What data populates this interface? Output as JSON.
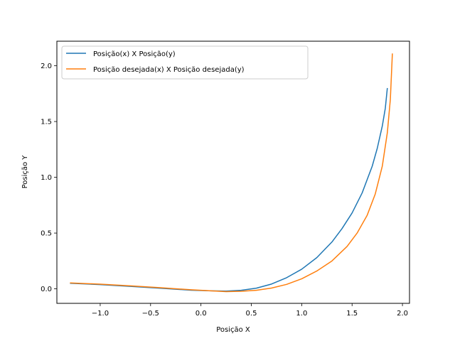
{
  "chart_data": {
    "type": "line",
    "title": "",
    "xlabel": "Posição X",
    "ylabel": "Posição Y",
    "xlim": [
      -1.43,
      2.07
    ],
    "ylim": [
      -0.13,
      2.22
    ],
    "xticks": [
      -1.0,
      -0.5,
      0.0,
      0.5,
      1.0,
      1.5,
      2.0
    ],
    "xtick_labels": [
      "−1.0",
      "−0.5",
      "0.0",
      "0.5",
      "1.0",
      "1.5",
      "2.0"
    ],
    "yticks": [
      0.0,
      0.5,
      1.0,
      1.5,
      2.0
    ],
    "ytick_labels": [
      "0.0",
      "0.5",
      "1.0",
      "1.5",
      "2.0"
    ],
    "grid": false,
    "legend_position": "upper-left",
    "series": [
      {
        "name": "Posição(x) X Posição(y)",
        "color": "#1f77b4",
        "x": [
          -1.3,
          -1.0,
          -0.7,
          -0.4,
          -0.1,
          0.1,
          0.25,
          0.4,
          0.55,
          0.7,
          0.85,
          1.0,
          1.15,
          1.3,
          1.4,
          1.5,
          1.6,
          1.7,
          1.75,
          1.8,
          1.83,
          1.85
        ],
        "y": [
          0.05,
          0.038,
          0.022,
          0.005,
          -0.012,
          -0.018,
          -0.02,
          -0.013,
          0.006,
          0.043,
          0.1,
          0.176,
          0.28,
          0.42,
          0.54,
          0.68,
          0.86,
          1.1,
          1.26,
          1.46,
          1.62,
          1.8
        ]
      },
      {
        "name": "Posição desejada(x) X Posição desejada(y)",
        "color": "#ff7f0e",
        "x": [
          -1.3,
          -1.0,
          -0.7,
          -0.4,
          -0.1,
          0.1,
          0.25,
          0.4,
          0.55,
          0.7,
          0.85,
          1.0,
          1.15,
          1.3,
          1.45,
          1.55,
          1.65,
          1.73,
          1.8,
          1.85,
          1.88,
          1.9
        ],
        "y": [
          0.053,
          0.042,
          0.027,
          0.01,
          -0.008,
          -0.018,
          -0.025,
          -0.022,
          -0.013,
          0.007,
          0.04,
          0.09,
          0.16,
          0.25,
          0.38,
          0.5,
          0.66,
          0.85,
          1.1,
          1.4,
          1.7,
          2.11
        ]
      }
    ]
  }
}
